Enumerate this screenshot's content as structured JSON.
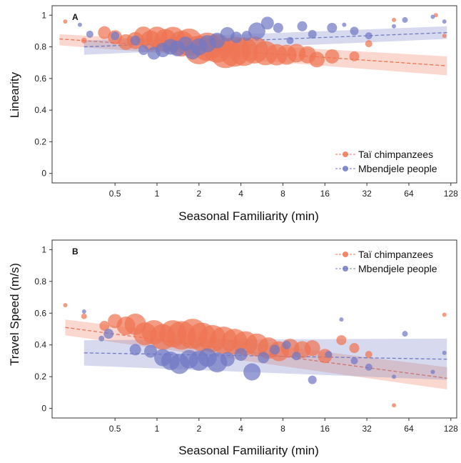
{
  "colors": {
    "chimp": "#ee7453",
    "human": "#7179c4",
    "axis": "#333333"
  },
  "chart_data": [
    {
      "panel": "A",
      "type": "scatter",
      "title": "",
      "xlabel": "Seasonal Familiarity (min)",
      "ylabel": "Linearity",
      "x_scale": "log2",
      "xlim": [
        0.177,
        141
      ],
      "ylim": [
        -0.06,
        1.06
      ],
      "x_ticks": [
        0.5,
        1,
        2,
        4,
        8,
        16,
        32,
        64,
        128
      ],
      "x_tick_labels": [
        "0.5",
        "1",
        "2",
        "4",
        "8",
        "16",
        "32",
        "64",
        "128"
      ],
      "y_ticks": [
        0,
        0.2,
        0.4,
        0.6,
        0.8,
        1
      ],
      "y_tick_labels": [
        "0",
        "0.2",
        "0.4",
        "0.6",
        "0.8",
        "1"
      ],
      "legend_position": "bottom-right",
      "series": [
        {
          "name": "Taï chimpanzees",
          "key": "chimp",
          "trend": {
            "x": [
              0.2,
              120
            ],
            "y": [
              0.85,
              0.68
            ],
            "ci_low": [
              0.81,
              0.62
            ],
            "ci_high": [
              0.88,
              0.74
            ]
          },
          "points": [
            {
              "x": 0.22,
              "y": 0.96,
              "size": 3
            },
            {
              "x": 0.3,
              "y": 0.84,
              "size": 4
            },
            {
              "x": 0.42,
              "y": 0.89,
              "size": 9
            },
            {
              "x": 0.5,
              "y": 0.86,
              "size": 10
            },
            {
              "x": 0.6,
              "y": 0.83,
              "size": 11
            },
            {
              "x": 0.7,
              "y": 0.84,
              "size": 12
            },
            {
              "x": 0.8,
              "y": 0.87,
              "size": 13
            },
            {
              "x": 0.9,
              "y": 0.84,
              "size": 14
            },
            {
              "x": 1.0,
              "y": 0.86,
              "size": 15
            },
            {
              "x": 1.15,
              "y": 0.84,
              "size": 16
            },
            {
              "x": 1.3,
              "y": 0.85,
              "size": 17
            },
            {
              "x": 1.5,
              "y": 0.82,
              "size": 18
            },
            {
              "x": 1.7,
              "y": 0.83,
              "size": 19
            },
            {
              "x": 2.0,
              "y": 0.78,
              "size": 20
            },
            {
              "x": 2.3,
              "y": 0.8,
              "size": 20
            },
            {
              "x": 2.7,
              "y": 0.79,
              "size": 20
            },
            {
              "x": 3.1,
              "y": 0.76,
              "size": 21
            },
            {
              "x": 3.6,
              "y": 0.77,
              "size": 21
            },
            {
              "x": 4.2,
              "y": 0.77,
              "size": 20
            },
            {
              "x": 5.0,
              "y": 0.78,
              "size": 19
            },
            {
              "x": 6.0,
              "y": 0.76,
              "size": 17
            },
            {
              "x": 7.2,
              "y": 0.75,
              "size": 15
            },
            {
              "x": 8.5,
              "y": 0.75,
              "size": 14
            },
            {
              "x": 10,
              "y": 0.76,
              "size": 13
            },
            {
              "x": 12,
              "y": 0.75,
              "size": 12
            },
            {
              "x": 14,
              "y": 0.72,
              "size": 11
            },
            {
              "x": 18,
              "y": 0.74,
              "size": 10
            },
            {
              "x": 26,
              "y": 0.74,
              "size": 7
            },
            {
              "x": 33,
              "y": 0.82,
              "size": 5
            },
            {
              "x": 50,
              "y": 0.97,
              "size": 3
            },
            {
              "x": 100,
              "y": 1.0,
              "size": 3
            },
            {
              "x": 115,
              "y": 0.87,
              "size": 3
            }
          ]
        },
        {
          "name": "Mbendjele people",
          "key": "human",
          "trend": {
            "x": [
              0.3,
              120
            ],
            "y": [
              0.8,
              0.89
            ],
            "ci_low": [
              0.75,
              0.85
            ],
            "ci_high": [
              0.84,
              0.93
            ]
          },
          "points": [
            {
              "x": 0.28,
              "y": 0.94,
              "size": 3
            },
            {
              "x": 0.33,
              "y": 0.88,
              "size": 5
            },
            {
              "x": 0.5,
              "y": 0.87,
              "size": 6
            },
            {
              "x": 0.7,
              "y": 0.84,
              "size": 7
            },
            {
              "x": 0.8,
              "y": 0.78,
              "size": 7
            },
            {
              "x": 0.95,
              "y": 0.76,
              "size": 9
            },
            {
              "x": 1.1,
              "y": 0.78,
              "size": 10
            },
            {
              "x": 1.25,
              "y": 0.8,
              "size": 11
            },
            {
              "x": 1.4,
              "y": 0.79,
              "size": 11
            },
            {
              "x": 1.6,
              "y": 0.82,
              "size": 10
            },
            {
              "x": 1.8,
              "y": 0.77,
              "size": 11
            },
            {
              "x": 2.0,
              "y": 0.8,
              "size": 12
            },
            {
              "x": 2.3,
              "y": 0.82,
              "size": 12
            },
            {
              "x": 2.7,
              "y": 0.84,
              "size": 11
            },
            {
              "x": 3.2,
              "y": 0.88,
              "size": 10
            },
            {
              "x": 3.7,
              "y": 0.86,
              "size": 8
            },
            {
              "x": 4.4,
              "y": 0.87,
              "size": 7
            },
            {
              "x": 5.2,
              "y": 0.9,
              "size": 12
            },
            {
              "x": 6.2,
              "y": 0.95,
              "size": 9
            },
            {
              "x": 7.4,
              "y": 0.92,
              "size": 7
            },
            {
              "x": 9.0,
              "y": 0.84,
              "size": 5
            },
            {
              "x": 11,
              "y": 0.93,
              "size": 7
            },
            {
              "x": 13,
              "y": 0.88,
              "size": 6
            },
            {
              "x": 18,
              "y": 0.92,
              "size": 7
            },
            {
              "x": 22,
              "y": 0.94,
              "size": 3
            },
            {
              "x": 26,
              "y": 0.9,
              "size": 6
            },
            {
              "x": 33,
              "y": 0.87,
              "size": 5
            },
            {
              "x": 50,
              "y": 0.93,
              "size": 3
            },
            {
              "x": 60,
              "y": 0.97,
              "size": 4
            },
            {
              "x": 95,
              "y": 0.99,
              "size": 3
            },
            {
              "x": 115,
              "y": 0.96,
              "size": 3
            }
          ]
        }
      ]
    },
    {
      "panel": "B",
      "type": "scatter",
      "title": "",
      "xlabel": "Seasonal Familiarity (min)",
      "ylabel": "Travel Speed (m/s)",
      "x_scale": "log2",
      "xlim": [
        0.177,
        141
      ],
      "ylim": [
        -0.06,
        1.06
      ],
      "x_ticks": [
        0.5,
        1,
        2,
        4,
        8,
        16,
        32,
        64,
        128
      ],
      "x_tick_labels": [
        "0.5",
        "1",
        "2",
        "4",
        "8",
        "16",
        "32",
        "64",
        "128"
      ],
      "y_ticks": [
        0,
        0.2,
        0.4,
        0.6,
        0.8,
        1
      ],
      "y_tick_labels": [
        "0",
        "0.2",
        "0.4",
        "0.6",
        "0.8",
        "1"
      ],
      "legend_position": "top-right",
      "series": [
        {
          "name": "Taï chimpanzees",
          "key": "chimp",
          "trend": {
            "x": [
              0.22,
              120
            ],
            "y": [
              0.51,
              0.19
            ],
            "ci_low": [
              0.46,
              0.12
            ],
            "ci_high": [
              0.56,
              0.26
            ]
          },
          "points": [
            {
              "x": 0.22,
              "y": 0.65,
              "size": 3
            },
            {
              "x": 0.3,
              "y": 0.58,
              "size": 4
            },
            {
              "x": 0.42,
              "y": 0.52,
              "size": 7
            },
            {
              "x": 0.5,
              "y": 0.55,
              "size": 10
            },
            {
              "x": 0.6,
              "y": 0.52,
              "size": 13
            },
            {
              "x": 0.7,
              "y": 0.53,
              "size": 15
            },
            {
              "x": 0.82,
              "y": 0.47,
              "size": 16
            },
            {
              "x": 0.95,
              "y": 0.48,
              "size": 17
            },
            {
              "x": 1.1,
              "y": 0.45,
              "size": 18
            },
            {
              "x": 1.3,
              "y": 0.47,
              "size": 19
            },
            {
              "x": 1.5,
              "y": 0.46,
              "size": 20
            },
            {
              "x": 1.8,
              "y": 0.47,
              "size": 21
            },
            {
              "x": 2.1,
              "y": 0.45,
              "size": 20
            },
            {
              "x": 2.5,
              "y": 0.44,
              "size": 19
            },
            {
              "x": 3.0,
              "y": 0.43,
              "size": 19
            },
            {
              "x": 3.6,
              "y": 0.42,
              "size": 18
            },
            {
              "x": 4.3,
              "y": 0.41,
              "size": 17
            },
            {
              "x": 5.2,
              "y": 0.4,
              "size": 16
            },
            {
              "x": 6.3,
              "y": 0.38,
              "size": 15
            },
            {
              "x": 7.5,
              "y": 0.36,
              "size": 14
            },
            {
              "x": 9.0,
              "y": 0.38,
              "size": 13
            },
            {
              "x": 11,
              "y": 0.37,
              "size": 12
            },
            {
              "x": 13,
              "y": 0.38,
              "size": 11
            },
            {
              "x": 16,
              "y": 0.33,
              "size": 10
            },
            {
              "x": 21,
              "y": 0.43,
              "size": 7
            },
            {
              "x": 26,
              "y": 0.38,
              "size": 7
            },
            {
              "x": 33,
              "y": 0.34,
              "size": 5
            },
            {
              "x": 50,
              "y": 0.02,
              "size": 3
            },
            {
              "x": 115,
              "y": 0.59,
              "size": 3
            }
          ]
        },
        {
          "name": "Mbendjele people",
          "key": "human",
          "trend": {
            "x": [
              0.3,
              120
            ],
            "y": [
              0.35,
              0.31
            ],
            "ci_low": [
              0.27,
              0.18
            ],
            "ci_high": [
              0.43,
              0.44
            ]
          },
          "points": [
            {
              "x": 0.3,
              "y": 0.61,
              "size": 3
            },
            {
              "x": 0.4,
              "y": 0.44,
              "size": 4
            },
            {
              "x": 0.45,
              "y": 0.47,
              "size": 7
            },
            {
              "x": 0.7,
              "y": 0.37,
              "size": 8
            },
            {
              "x": 0.9,
              "y": 0.36,
              "size": 9
            },
            {
              "x": 1.1,
              "y": 0.32,
              "size": 12
            },
            {
              "x": 1.25,
              "y": 0.3,
              "size": 13
            },
            {
              "x": 1.45,
              "y": 0.28,
              "size": 14
            },
            {
              "x": 1.7,
              "y": 0.31,
              "size": 13
            },
            {
              "x": 2.0,
              "y": 0.3,
              "size": 14
            },
            {
              "x": 2.3,
              "y": 0.32,
              "size": 13
            },
            {
              "x": 2.7,
              "y": 0.29,
              "size": 14
            },
            {
              "x": 3.2,
              "y": 0.31,
              "size": 10
            },
            {
              "x": 4.0,
              "y": 0.34,
              "size": 9
            },
            {
              "x": 4.8,
              "y": 0.23,
              "size": 12
            },
            {
              "x": 5.8,
              "y": 0.32,
              "size": 8
            },
            {
              "x": 7.0,
              "y": 0.37,
              "size": 7
            },
            {
              "x": 8.5,
              "y": 0.4,
              "size": 6
            },
            {
              "x": 10,
              "y": 0.33,
              "size": 6
            },
            {
              "x": 13,
              "y": 0.18,
              "size": 6
            },
            {
              "x": 17,
              "y": 0.34,
              "size": 5
            },
            {
              "x": 21,
              "y": 0.56,
              "size": 3
            },
            {
              "x": 26,
              "y": 0.3,
              "size": 5
            },
            {
              "x": 33,
              "y": 0.26,
              "size": 5
            },
            {
              "x": 50,
              "y": 0.2,
              "size": 3
            },
            {
              "x": 60,
              "y": 0.47,
              "size": 4
            },
            {
              "x": 95,
              "y": 0.23,
              "size": 3
            },
            {
              "x": 115,
              "y": 0.35,
              "size": 3
            }
          ]
        }
      ]
    }
  ]
}
